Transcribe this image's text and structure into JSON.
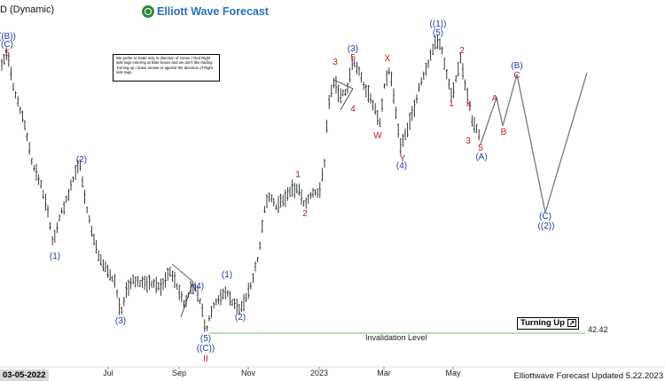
{
  "header": {
    "title": "D (Dynamic)",
    "brand": "Elliott Wave Forecast"
  },
  "note": {
    "text": "We prefer to trade only in direction of Green / Red Right side tags entering at Blue boxes and we don't like trading Turning up / down arrows or against the direction of Right side tags."
  },
  "badge": {
    "label": "Turning Up",
    "icon": "arrow-up-right-icon"
  },
  "invalidation": {
    "label": "Invalidation Level",
    "value": "42.42"
  },
  "footer": {
    "updated": "Elliottwave Forecast Updated 5.22.2023"
  },
  "colors": {
    "blue_label": "#1f3aa8",
    "red_label": "#c0181c",
    "invalidation_line": "#7fd17f",
    "bars": "#222222"
  },
  "chart_data": {
    "type": "ohlc",
    "title": "",
    "xlabel": "",
    "ylabel": "",
    "current_date_label": "03-05-2022",
    "x_ticks": [
      "Jul",
      "Sep",
      "Nov",
      "2023",
      "Mar",
      "May"
    ],
    "price_levels": [
      {
        "label": "Invalidation Level",
        "value": 42.42
      }
    ],
    "wave_labels_blue": [
      "((B))",
      "(C)",
      "(1)",
      "(2)",
      "(3)",
      "(4)",
      "(5)",
      "((C))",
      "(1)",
      "(2)",
      "(3)",
      "(4)",
      "((1))",
      "(5)",
      "(A)",
      "(B)",
      "(C)",
      "((2))"
    ],
    "wave_labels_red": [
      "5",
      "1",
      "2",
      "3",
      "5",
      "4",
      "X",
      "W",
      "Y",
      "2",
      "1",
      "4",
      "3",
      "5",
      "A",
      "B",
      "C",
      "II"
    ],
    "projection": [
      "(A)",
      "A",
      "B",
      "C",
      "(B)",
      "(C)"
    ]
  }
}
